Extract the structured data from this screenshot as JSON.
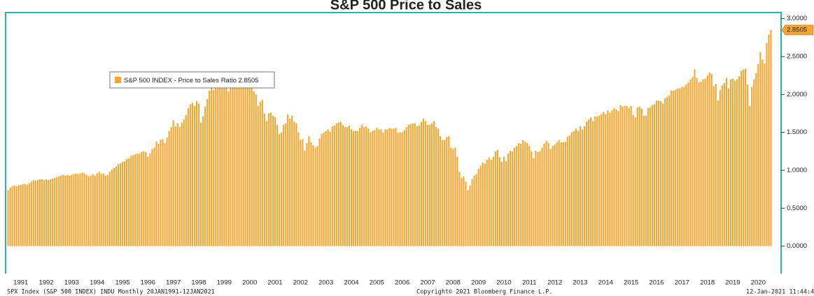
{
  "chart_data": {
    "type": "bar",
    "title": "S&P 500 Price to Sales",
    "footer_left": "SPX Index (S&P 500 INDEX) INDU  Monthly 20JAN1991-12JAN2021",
    "footer_center": "Copyright© 2021 Bloomberg Finance L.P.",
    "footer_right": "12-Jan-2021 11:44:48",
    "legend": "top-left",
    "categories": [
      null,
      null,
      null,
      null,
      null,
      null,
      "1991",
      null,
      null,
      null,
      null,
      null,
      null,
      null,
      null,
      null,
      null,
      null,
      "1992",
      null,
      null,
      null,
      null,
      null,
      null,
      null,
      null,
      null,
      null,
      null,
      "1993",
      null,
      null,
      null,
      null,
      null,
      null,
      null,
      null,
      null,
      null,
      null,
      "1994",
      null,
      null,
      null,
      null,
      null,
      null,
      null,
      null,
      null,
      null,
      null,
      "1995",
      null,
      null,
      null,
      null,
      null,
      null,
      null,
      null,
      null,
      null,
      null,
      "1996",
      null,
      null,
      null,
      null,
      null,
      null,
      null,
      null,
      null,
      null,
      null,
      "1997",
      null,
      null,
      null,
      null,
      null,
      null,
      null,
      null,
      null,
      null,
      null,
      "1998",
      null,
      null,
      null,
      null,
      null,
      null,
      null,
      null,
      null,
      null,
      null,
      "1999",
      null,
      null,
      null,
      null,
      null,
      null,
      null,
      null,
      null,
      null,
      null,
      "2000",
      null,
      null,
      null,
      null,
      null,
      null,
      null,
      null,
      null,
      null,
      null,
      "2001",
      null,
      null,
      null,
      null,
      null,
      null,
      null,
      null,
      null,
      null,
      null,
      "2002",
      null,
      null,
      null,
      null,
      null,
      null,
      null,
      null,
      null,
      null,
      null,
      "2003",
      null,
      null,
      null,
      null,
      null,
      null,
      null,
      null,
      null,
      null,
      null,
      "2004",
      null,
      null,
      null,
      null,
      null,
      null,
      null,
      null,
      null,
      null,
      null,
      "2005",
      null,
      null,
      null,
      null,
      null,
      null,
      null,
      null,
      null,
      null,
      null,
      "2006",
      null,
      null,
      null,
      null,
      null,
      null,
      null,
      null,
      null,
      null,
      null,
      "2007",
      null,
      null,
      null,
      null,
      null,
      null,
      null,
      null,
      null,
      null,
      null,
      "2008",
      null,
      null,
      null,
      null,
      null,
      null,
      null,
      null,
      null,
      null,
      null,
      "2009",
      null,
      null,
      null,
      null,
      null,
      null,
      null,
      null,
      null,
      null,
      null,
      "2010",
      null,
      null,
      null,
      null,
      null,
      null,
      null,
      null,
      null,
      null,
      null,
      "2011",
      null,
      null,
      null,
      null,
      null,
      null,
      null,
      null,
      null,
      null,
      null,
      "2012",
      null,
      null,
      null,
      null,
      null,
      null,
      null,
      null,
      null,
      null,
      null,
      "2013",
      null,
      null,
      null,
      null,
      null,
      null,
      null,
      null,
      null,
      null,
      null,
      "2014",
      null,
      null,
      null,
      null,
      null,
      null,
      null,
      null,
      null,
      null,
      null,
      "2015",
      null,
      null,
      null,
      null,
      null,
      null,
      null,
      null,
      null,
      null,
      null,
      "2016",
      null,
      null,
      null,
      null,
      null,
      null,
      null,
      null,
      null,
      null,
      null,
      "2017",
      null,
      null,
      null,
      null,
      null,
      null,
      null,
      null,
      null,
      null,
      null,
      "2018",
      null,
      null,
      null,
      null,
      null,
      null,
      null,
      null,
      null,
      null,
      null,
      "2019",
      null,
      null,
      null,
      null,
      null,
      null,
      null,
      null,
      null,
      null,
      null,
      "2020",
      null,
      null,
      null,
      null,
      null,
      null
    ],
    "series": [
      {
        "name": "S&P 500 INDEX - Price to Sales Ratio",
        "color": "#f5a631",
        "values": [
          0.74,
          0.77,
          0.79,
          0.8,
          0.79,
          0.8,
          0.81,
          0.82,
          0.82,
          0.81,
          0.83,
          0.85,
          0.87,
          0.86,
          0.87,
          0.88,
          0.88,
          0.87,
          0.88,
          0.87,
          0.88,
          0.89,
          0.9,
          0.91,
          0.92,
          0.93,
          0.94,
          0.93,
          0.94,
          0.93,
          0.94,
          0.95,
          0.96,
          0.95,
          0.96,
          0.97,
          0.96,
          0.94,
          0.92,
          0.93,
          0.95,
          0.93,
          0.96,
          0.98,
          0.95,
          0.96,
          0.93,
          0.94,
          0.98,
          1.01,
          1.03,
          1.05,
          1.08,
          1.09,
          1.11,
          1.12,
          1.15,
          1.16,
          1.19,
          1.2,
          1.21,
          1.22,
          1.22,
          1.24,
          1.25,
          1.24,
          1.18,
          1.22,
          1.28,
          1.3,
          1.38,
          1.35,
          1.4,
          1.41,
          1.36,
          1.43,
          1.52,
          1.57,
          1.66,
          1.58,
          1.62,
          1.57,
          1.63,
          1.67,
          1.73,
          1.82,
          1.87,
          1.89,
          1.85,
          1.91,
          1.88,
          1.63,
          1.71,
          1.84,
          1.94,
          2.05,
          2.12,
          2.06,
          2.13,
          2.16,
          2.1,
          2.18,
          2.12,
          2.1,
          2.04,
          2.15,
          2.18,
          2.25,
          2.17,
          2.12,
          2.28,
          2.2,
          2.14,
          2.18,
          2.12,
          2.2,
          2.04,
          2.0,
          1.85,
          1.9,
          1.93,
          1.75,
          1.65,
          1.75,
          1.76,
          1.72,
          1.7,
          1.6,
          1.48,
          1.5,
          1.6,
          1.62,
          1.74,
          1.68,
          1.72,
          1.64,
          1.62,
          1.5,
          1.4,
          1.41,
          1.26,
          1.36,
          1.45,
          1.37,
          1.33,
          1.3,
          1.32,
          1.42,
          1.48,
          1.5,
          1.52,
          1.54,
          1.51,
          1.58,
          1.59,
          1.62,
          1.63,
          1.64,
          1.6,
          1.57,
          1.57,
          1.59,
          1.54,
          1.52,
          1.52,
          1.52,
          1.56,
          1.6,
          1.57,
          1.58,
          1.55,
          1.5,
          1.52,
          1.53,
          1.56,
          1.54,
          1.54,
          1.5,
          1.54,
          1.54,
          1.56,
          1.55,
          1.55,
          1.56,
          1.5,
          1.5,
          1.5,
          1.53,
          1.57,
          1.6,
          1.61,
          1.62,
          1.62,
          1.58,
          1.59,
          1.64,
          1.68,
          1.65,
          1.6,
          1.6,
          1.62,
          1.65,
          1.57,
          1.55,
          1.45,
          1.4,
          1.4,
          1.44,
          1.45,
          1.3,
          1.28,
          1.3,
          1.18,
          0.98,
          0.9,
          0.92,
          0.85,
          0.74,
          0.8,
          0.88,
          0.93,
          0.95,
          1.02,
          1.06,
          1.1,
          1.09,
          1.14,
          1.17,
          1.14,
          1.18,
          1.25,
          1.27,
          1.17,
          1.11,
          1.18,
          1.12,
          1.22,
          1.26,
          1.25,
          1.3,
          1.32,
          1.36,
          1.35,
          1.4,
          1.38,
          1.36,
          1.32,
          1.25,
          1.16,
          1.26,
          1.24,
          1.25,
          1.3,
          1.35,
          1.39,
          1.36,
          1.28,
          1.32,
          1.34,
          1.37,
          1.4,
          1.37,
          1.37,
          1.38,
          1.44,
          1.46,
          1.5,
          1.52,
          1.55,
          1.52,
          1.58,
          1.54,
          1.58,
          1.64,
          1.67,
          1.7,
          1.65,
          1.71,
          1.71,
          1.72,
          1.74,
          1.77,
          1.74,
          1.79,
          1.76,
          1.79,
          1.82,
          1.8,
          1.78,
          1.86,
          1.84,
          1.85,
          1.85,
          1.82,
          1.85,
          1.73,
          1.7,
          1.83,
          1.84,
          1.81,
          1.72,
          1.72,
          1.82,
          1.83,
          1.86,
          1.87,
          1.92,
          1.92,
          1.91,
          1.88,
          1.95,
          1.97,
          1.99,
          2.05,
          2.05,
          2.06,
          2.08,
          2.08,
          2.1,
          2.1,
          2.13,
          2.16,
          2.2,
          2.23,
          2.33,
          2.22,
          2.16,
          2.17,
          2.2,
          2.21,
          2.25,
          2.29,
          2.27,
          2.11,
          2.14,
          1.92,
          2.06,
          2.12,
          2.15,
          2.22,
          2.08,
          2.2,
          2.21,
          2.18,
          2.2,
          2.24,
          2.31,
          2.33,
          2.34,
          2.13,
          1.85,
          2.1,
          2.2,
          2.28,
          2.4,
          2.56,
          2.46,
          2.41,
          2.68,
          2.79,
          2.8505
        ]
      }
    ],
    "ylim": [
      -0.28,
      3.08
    ],
    "yticks": [
      {
        "value": 0,
        "label": "0.0000"
      },
      {
        "value": 0.5,
        "label": "0.5000"
      },
      {
        "value": 1,
        "label": "1.0000"
      },
      {
        "value": 1.5,
        "label": "1.5000"
      },
      {
        "value": 2,
        "label": "2.0000"
      },
      {
        "value": 2.5,
        "label": "2.5000"
      },
      {
        "value": 3,
        "label": "3.0000"
      }
    ],
    "grid": false
  }
}
